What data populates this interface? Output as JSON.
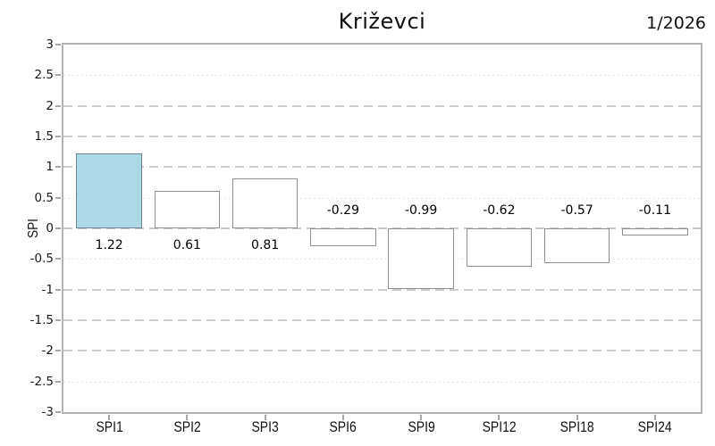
{
  "header": {
    "title": "Križevci",
    "date": "1/2026"
  },
  "chart_data": {
    "type": "bar",
    "title": "Križevci",
    "subtitle_right": "1/2026",
    "xlabel": "",
    "ylabel": "SPI",
    "categories": [
      "SPI1",
      "SPI2",
      "SPI3",
      "SPI6",
      "SPI9",
      "SPI12",
      "SPI18",
      "SPI24"
    ],
    "values": [
      1.22,
      0.61,
      0.81,
      -0.29,
      -0.99,
      -0.62,
      -0.57,
      -0.11
    ],
    "value_labels": [
      "1.22",
      "0.61",
      "0.81",
      "-0.29",
      "-0.99",
      "-0.62",
      "-0.57",
      "-0.11"
    ],
    "ylim": [
      -3,
      3
    ],
    "ytick_step": 0.5,
    "yticks": [
      3,
      2.5,
      2,
      1.5,
      1,
      0.5,
      0,
      -0.5,
      -1,
      -1.5,
      -2,
      -2.5,
      -3
    ],
    "grid": {
      "on": true,
      "dashed_levels": [
        2,
        1.5,
        1,
        0,
        -1,
        -1.5,
        -2
      ],
      "dotted_levels": [
        2.5,
        0.5,
        -0.5,
        -2.5
      ]
    },
    "legend": "none",
    "highlight_index": 0,
    "colors": {
      "highlight_fill": "#add8e6",
      "highlight_border": "#6f8691",
      "bar_fill": "#ffffff",
      "bar_border": "#8f8f8f",
      "frame": "#b3b3b3",
      "grid_dashed": "#cccccc",
      "grid_dotted": "#dcdcdc",
      "text": "#111111"
    }
  }
}
